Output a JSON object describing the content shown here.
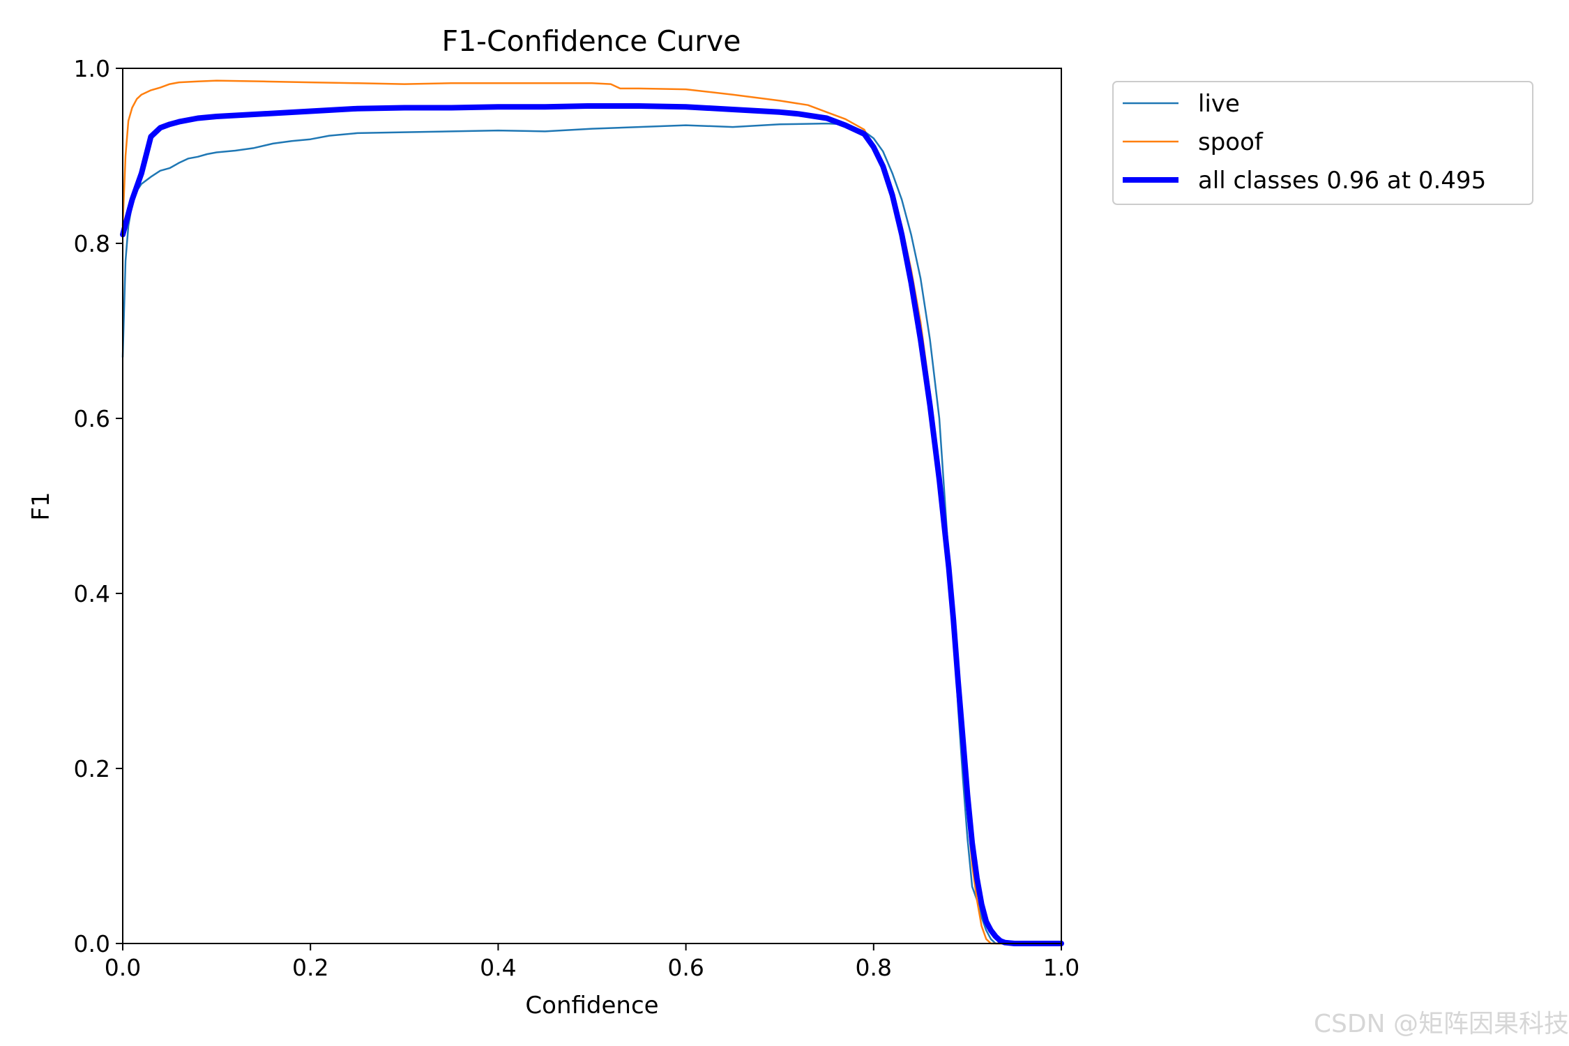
{
  "chart_data": {
    "type": "line",
    "title": "F1-Confidence Curve",
    "xlabel": "Confidence",
    "ylabel": "F1",
    "xlim": [
      0.0,
      1.0
    ],
    "ylim": [
      0.0,
      1.0
    ],
    "x_ticks": [
      "0.0",
      "0.2",
      "0.4",
      "0.6",
      "0.8",
      "1.0"
    ],
    "y_ticks": [
      "0.0",
      "0.2",
      "0.4",
      "0.6",
      "0.8",
      "1.0"
    ],
    "grid": false,
    "legend_position": "outside-top-right",
    "series": [
      {
        "name": "live",
        "color": "#1f77b4",
        "line_width": "thin",
        "points": [
          [
            0.0,
            0.67
          ],
          [
            0.003,
            0.78
          ],
          [
            0.006,
            0.82
          ],
          [
            0.01,
            0.845
          ],
          [
            0.015,
            0.86
          ],
          [
            0.02,
            0.868
          ],
          [
            0.03,
            0.876
          ],
          [
            0.04,
            0.883
          ],
          [
            0.05,
            0.886
          ],
          [
            0.06,
            0.892
          ],
          [
            0.07,
            0.897
          ],
          [
            0.08,
            0.899
          ],
          [
            0.09,
            0.902
          ],
          [
            0.1,
            0.904
          ],
          [
            0.12,
            0.906
          ],
          [
            0.14,
            0.909
          ],
          [
            0.16,
            0.914
          ],
          [
            0.18,
            0.917
          ],
          [
            0.2,
            0.919
          ],
          [
            0.22,
            0.923
          ],
          [
            0.25,
            0.926
          ],
          [
            0.3,
            0.927
          ],
          [
            0.35,
            0.928
          ],
          [
            0.4,
            0.929
          ],
          [
            0.45,
            0.928
          ],
          [
            0.5,
            0.931
          ],
          [
            0.55,
            0.933
          ],
          [
            0.6,
            0.935
          ],
          [
            0.65,
            0.933
          ],
          [
            0.7,
            0.936
          ],
          [
            0.75,
            0.937
          ],
          [
            0.77,
            0.936
          ],
          [
            0.79,
            0.928
          ],
          [
            0.8,
            0.92
          ],
          [
            0.81,
            0.905
          ],
          [
            0.82,
            0.88
          ],
          [
            0.83,
            0.85
          ],
          [
            0.84,
            0.81
          ],
          [
            0.85,
            0.76
          ],
          [
            0.86,
            0.69
          ],
          [
            0.87,
            0.6
          ],
          [
            0.875,
            0.52
          ],
          [
            0.88,
            0.44
          ],
          [
            0.885,
            0.36
          ],
          [
            0.89,
            0.27
          ],
          [
            0.895,
            0.19
          ],
          [
            0.9,
            0.12
          ],
          [
            0.905,
            0.065
          ],
          [
            0.91,
            0.05
          ],
          [
            0.915,
            0.03
          ],
          [
            0.92,
            0.015
          ],
          [
            0.925,
            0.005
          ],
          [
            0.93,
            0.0
          ],
          [
            0.95,
            0.0
          ],
          [
            1.0,
            0.0
          ]
        ]
      },
      {
        "name": "spoof",
        "color": "#ff7f0e",
        "line_width": "thin",
        "points": [
          [
            0.0,
            0.82
          ],
          [
            0.003,
            0.9
          ],
          [
            0.006,
            0.94
          ],
          [
            0.01,
            0.955
          ],
          [
            0.015,
            0.965
          ],
          [
            0.02,
            0.97
          ],
          [
            0.03,
            0.975
          ],
          [
            0.04,
            0.978
          ],
          [
            0.05,
            0.982
          ],
          [
            0.06,
            0.984
          ],
          [
            0.08,
            0.985
          ],
          [
            0.1,
            0.986
          ],
          [
            0.15,
            0.985
          ],
          [
            0.2,
            0.984
          ],
          [
            0.25,
            0.983
          ],
          [
            0.3,
            0.982
          ],
          [
            0.35,
            0.983
          ],
          [
            0.4,
            0.983
          ],
          [
            0.45,
            0.983
          ],
          [
            0.5,
            0.983
          ],
          [
            0.52,
            0.982
          ],
          [
            0.53,
            0.977
          ],
          [
            0.55,
            0.977
          ],
          [
            0.6,
            0.976
          ],
          [
            0.65,
            0.97
          ],
          [
            0.7,
            0.963
          ],
          [
            0.73,
            0.958
          ],
          [
            0.75,
            0.95
          ],
          [
            0.77,
            0.942
          ],
          [
            0.79,
            0.93
          ],
          [
            0.8,
            0.91
          ],
          [
            0.81,
            0.89
          ],
          [
            0.82,
            0.86
          ],
          [
            0.83,
            0.82
          ],
          [
            0.84,
            0.77
          ],
          [
            0.85,
            0.71
          ],
          [
            0.86,
            0.63
          ],
          [
            0.87,
            0.54
          ],
          [
            0.88,
            0.44
          ],
          [
            0.885,
            0.37
          ],
          [
            0.89,
            0.3
          ],
          [
            0.895,
            0.22
          ],
          [
            0.9,
            0.15
          ],
          [
            0.905,
            0.09
          ],
          [
            0.91,
            0.05
          ],
          [
            0.915,
            0.02
          ],
          [
            0.92,
            0.005
          ],
          [
            0.925,
            0.0
          ],
          [
            0.95,
            0.0
          ],
          [
            1.0,
            0.0
          ]
        ]
      },
      {
        "name": "all classes 0.96 at 0.495",
        "color": "#0000ff",
        "line_width": "thick",
        "points": [
          [
            0.0,
            0.81
          ],
          [
            0.01,
            0.85
          ],
          [
            0.02,
            0.88
          ],
          [
            0.03,
            0.922
          ],
          [
            0.04,
            0.932
          ],
          [
            0.05,
            0.936
          ],
          [
            0.06,
            0.939
          ],
          [
            0.08,
            0.943
          ],
          [
            0.1,
            0.945
          ],
          [
            0.15,
            0.948
          ],
          [
            0.2,
            0.951
          ],
          [
            0.25,
            0.954
          ],
          [
            0.3,
            0.955
          ],
          [
            0.35,
            0.955
          ],
          [
            0.4,
            0.956
          ],
          [
            0.45,
            0.956
          ],
          [
            0.495,
            0.957
          ],
          [
            0.55,
            0.957
          ],
          [
            0.6,
            0.956
          ],
          [
            0.65,
            0.953
          ],
          [
            0.7,
            0.95
          ],
          [
            0.72,
            0.948
          ],
          [
            0.75,
            0.943
          ],
          [
            0.77,
            0.935
          ],
          [
            0.79,
            0.925
          ],
          [
            0.8,
            0.91
          ],
          [
            0.81,
            0.888
          ],
          [
            0.82,
            0.855
          ],
          [
            0.83,
            0.81
          ],
          [
            0.84,
            0.755
          ],
          [
            0.85,
            0.69
          ],
          [
            0.86,
            0.615
          ],
          [
            0.87,
            0.53
          ],
          [
            0.88,
            0.43
          ],
          [
            0.885,
            0.37
          ],
          [
            0.89,
            0.3
          ],
          [
            0.895,
            0.235
          ],
          [
            0.9,
            0.17
          ],
          [
            0.905,
            0.115
          ],
          [
            0.91,
            0.075
          ],
          [
            0.915,
            0.045
          ],
          [
            0.92,
            0.025
          ],
          [
            0.925,
            0.015
          ],
          [
            0.93,
            0.008
          ],
          [
            0.935,
            0.003
          ],
          [
            0.94,
            0.001
          ],
          [
            0.95,
            0.0
          ],
          [
            1.0,
            0.0
          ]
        ]
      }
    ]
  },
  "watermark": "CSDN @矩阵因果科技"
}
